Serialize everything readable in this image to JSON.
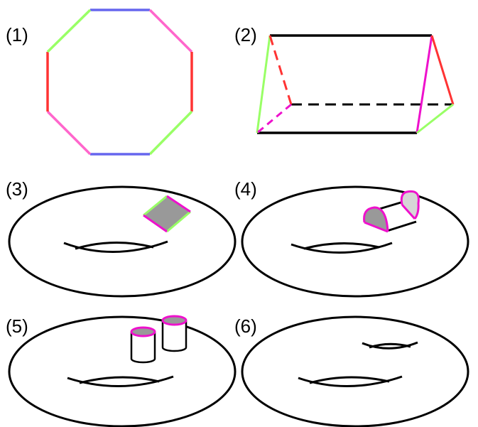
{
  "labels": {
    "p1": "(1)",
    "p2": "(2)",
    "p3": "(3)",
    "p4": "(4)",
    "p5": "(5)",
    "p6": "(6)"
  },
  "colors": {
    "green": "#99ff66",
    "blue": "#6666ee",
    "pink": "#ff66cc",
    "red": "#ff3333",
    "magenta": "#ee11cc",
    "black": "#000000",
    "gray": "#999999",
    "light_gray": "#d6d6d6"
  }
}
